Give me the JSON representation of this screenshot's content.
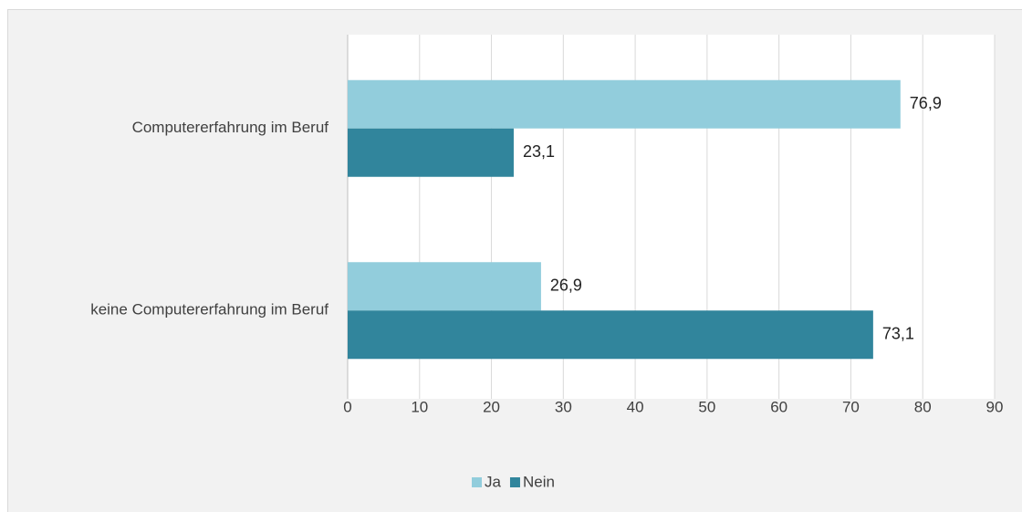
{
  "chart_data": {
    "type": "bar",
    "orientation": "horizontal",
    "categories": [
      "Computererfahrung im Beruf",
      "keine Computererfahrung im Beruf"
    ],
    "series": [
      {
        "name": "Ja",
        "color": "#92cddc",
        "values": [
          76.9,
          26.9
        ],
        "value_labels": [
          "76,9",
          "26,9"
        ]
      },
      {
        "name": "Nein",
        "color": "#31859c",
        "values": [
          23.1,
          73.1
        ],
        "value_labels": [
          "23,1",
          "73,1"
        ]
      }
    ],
    "xlim": [
      0,
      90
    ],
    "xticks": [
      0,
      10,
      20,
      30,
      40,
      50,
      60,
      70,
      80,
      90
    ],
    "grid": true,
    "legend": "bottom"
  }
}
